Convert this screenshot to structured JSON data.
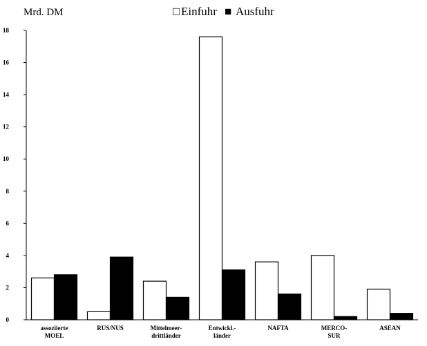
{
  "chart_data": {
    "type": "bar",
    "ylabel": "Mrd. DM",
    "categories": [
      [
        "assoziierte",
        "MOEL"
      ],
      [
        "RUS/NUS"
      ],
      [
        "Mittelmeer-",
        "drittländer"
      ],
      [
        "Entwickl.-",
        "länder"
      ],
      [
        "NAFTA"
      ],
      [
        "MERCO-",
        "SUR"
      ],
      [
        "ASEAN"
      ]
    ],
    "series": [
      {
        "name": "Einfuhr",
        "values": [
          2.6,
          0.5,
          2.4,
          17.6,
          3.6,
          4.0,
          1.9
        ],
        "color": "#ffffff"
      },
      {
        "name": "Ausfuhr",
        "values": [
          2.8,
          3.9,
          1.4,
          3.1,
          1.6,
          0.2,
          0.4
        ],
        "color": "#000000"
      }
    ],
    "ylim": [
      0,
      18
    ],
    "yticks": [
      0,
      2,
      4,
      6,
      8,
      10,
      12,
      14,
      16,
      18
    ],
    "legend": {
      "position": "top-center",
      "markers": [
        "□",
        "■"
      ]
    },
    "grid": false
  }
}
